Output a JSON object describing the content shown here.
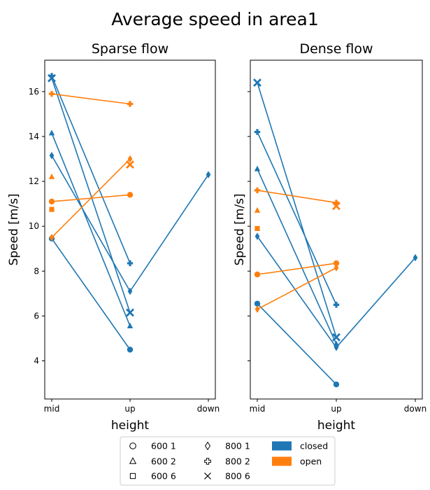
{
  "chart_data": {
    "type": "line",
    "title": "Average speed in area1",
    "categories": [
      "mid",
      "up",
      "down"
    ],
    "ylim": [
      2.3,
      17.4
    ],
    "yticks": [
      4,
      6,
      8,
      10,
      12,
      14,
      16
    ],
    "grid": false,
    "colors": {
      "closed": "#1f77b4",
      "open": "#ff7f0e"
    },
    "legend": {
      "placement": "bottom-center",
      "markers": [
        {
          "label": "600 1",
          "marker": "circle"
        },
        {
          "label": "600 2",
          "marker": "triangle"
        },
        {
          "label": "600 6",
          "marker": "square"
        },
        {
          "label": "800 1",
          "marker": "diamond"
        },
        {
          "label": "800 2",
          "marker": "plus"
        },
        {
          "label": "800 6",
          "marker": "x"
        }
      ],
      "patches": [
        {
          "label": "closed",
          "color_key": "closed"
        },
        {
          "label": "open",
          "color_key": "open"
        }
      ]
    },
    "panels": [
      {
        "title": "Sparse flow",
        "xlabel": "height",
        "ylabel": "Speed [m/s]",
        "series": [
          {
            "group": "closed",
            "marker": "circle",
            "x": [
              "mid",
              "up"
            ],
            "y": [
              9.45,
              4.5
            ]
          },
          {
            "group": "closed",
            "marker": "triangle",
            "x": [
              "mid",
              "up"
            ],
            "y": [
              14.15,
              5.55
            ]
          },
          {
            "group": "closed",
            "marker": "diamond",
            "x": [
              "mid",
              "up",
              "down"
            ],
            "y": [
              13.15,
              7.1,
              12.3
            ]
          },
          {
            "group": "closed",
            "marker": "plus",
            "x": [
              "mid",
              "up"
            ],
            "y": [
              16.7,
              8.35
            ]
          },
          {
            "group": "closed",
            "marker": "x",
            "x": [
              "mid",
              "up"
            ],
            "y": [
              16.6,
              6.15
            ]
          },
          {
            "group": "open",
            "marker": "circle",
            "x": [
              "mid",
              "up"
            ],
            "y": [
              11.1,
              11.4
            ]
          },
          {
            "group": "open",
            "marker": "triangle",
            "x": [
              "mid"
            ],
            "y": [
              12.2
            ]
          },
          {
            "group": "open",
            "marker": "square",
            "x": [
              "mid"
            ],
            "y": [
              10.75
            ]
          },
          {
            "group": "open",
            "marker": "diamond",
            "x": [
              "mid",
              "up"
            ],
            "y": [
              9.5,
              13.0
            ]
          },
          {
            "group": "open",
            "marker": "plus",
            "x": [
              "mid",
              "up"
            ],
            "y": [
              15.9,
              15.45
            ]
          },
          {
            "group": "open",
            "marker": "x",
            "x": [
              "up"
            ],
            "y": [
              12.75
            ]
          }
        ]
      },
      {
        "title": "Dense flow",
        "xlabel": "height",
        "ylabel": "Speed [m/s]",
        "series": [
          {
            "group": "closed",
            "marker": "circle",
            "x": [
              "mid",
              "up"
            ],
            "y": [
              6.55,
              2.95
            ]
          },
          {
            "group": "closed",
            "marker": "triangle",
            "x": [
              "mid",
              "up"
            ],
            "y": [
              12.55,
              4.75
            ]
          },
          {
            "group": "closed",
            "marker": "diamond",
            "x": [
              "mid",
              "up",
              "down"
            ],
            "y": [
              9.55,
              4.6,
              8.6
            ]
          },
          {
            "group": "closed",
            "marker": "plus",
            "x": [
              "mid",
              "up"
            ],
            "y": [
              14.2,
              6.5
            ]
          },
          {
            "group": "closed",
            "marker": "x",
            "x": [
              "mid",
              "up"
            ],
            "y": [
              16.4,
              5.05
            ]
          },
          {
            "group": "open",
            "marker": "circle",
            "x": [
              "mid",
              "up"
            ],
            "y": [
              7.85,
              8.35
            ]
          },
          {
            "group": "open",
            "marker": "triangle",
            "x": [
              "mid"
            ],
            "y": [
              10.7
            ]
          },
          {
            "group": "open",
            "marker": "square",
            "x": [
              "mid"
            ],
            "y": [
              9.9
            ]
          },
          {
            "group": "open",
            "marker": "diamond",
            "x": [
              "mid",
              "up"
            ],
            "y": [
              6.3,
              8.15
            ]
          },
          {
            "group": "open",
            "marker": "plus",
            "x": [
              "mid",
              "up"
            ],
            "y": [
              11.6,
              11.05
            ]
          },
          {
            "group": "open",
            "marker": "x",
            "x": [
              "up"
            ],
            "y": [
              10.9
            ]
          }
        ]
      }
    ]
  }
}
